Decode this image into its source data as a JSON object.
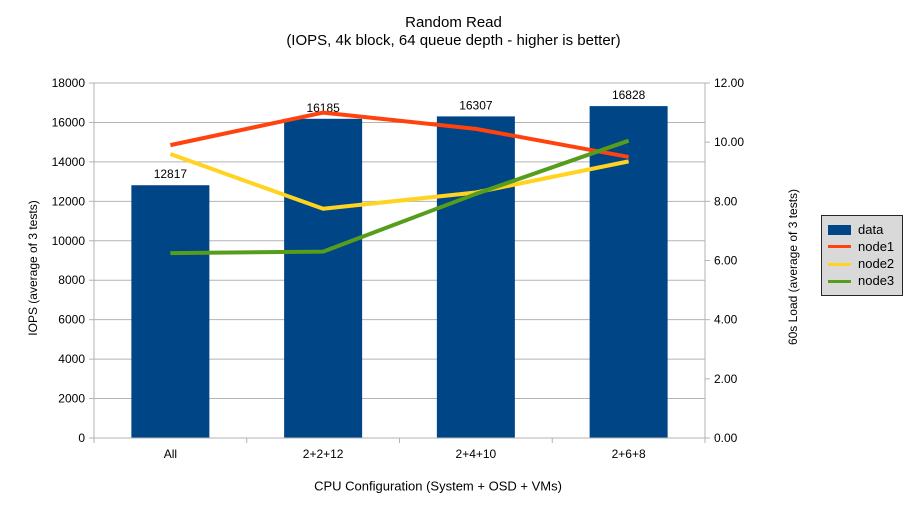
{
  "title": {
    "line1": "Random Read",
    "line2": "(IOPS, 4k block, 64 queue depth - higher is better)"
  },
  "axes": {
    "left": {
      "title": "IOPS (average of 3 tests)"
    },
    "right": {
      "title": "60s Load (average of 3 tests)"
    },
    "x": {
      "title": "CPU Configuration (System + OSD + VMs)"
    }
  },
  "legend": {
    "position": "right",
    "items": [
      {
        "label": "data",
        "color": "#004586",
        "type": "bar"
      },
      {
        "label": "node1",
        "color": "#FF420E",
        "type": "line"
      },
      {
        "label": "node2",
        "color": "#FFD320",
        "type": "line"
      },
      {
        "label": "node3",
        "color": "#579D1C",
        "type": "line"
      }
    ]
  },
  "colors": {
    "bar": "#004586",
    "node1": "#FF420E",
    "node2": "#FFD320",
    "node3": "#579D1C",
    "gridline": "#b3b3b3",
    "axis_line": "#b3b3b3",
    "text": "#000000",
    "legend_bg": "#d9d9d9",
    "background": "#ffffff"
  },
  "chart_data": {
    "type": "bar",
    "subtype": "combo bar + line, dual axis",
    "title": "Random Read",
    "subtitle": "(IOPS, 4k block, 64 queue depth - higher is better)",
    "xlabel": "CPU Configuration (System + OSD + VMs)",
    "categories": [
      "All",
      "2+2+12",
      "2+4+10",
      "2+6+8"
    ],
    "bar_series": {
      "name": "data",
      "axis": "left",
      "color": "#004586",
      "values": [
        12817,
        16185,
        16307,
        16828
      ],
      "value_labels": [
        "12817",
        "16185",
        "16307",
        "16828"
      ]
    },
    "line_series": [
      {
        "name": "node1",
        "axis": "right",
        "color": "#FF420E",
        "values": [
          9.9,
          11.0,
          10.45,
          9.5
        ]
      },
      {
        "name": "node2",
        "axis": "right",
        "color": "#FFD320",
        "values": [
          9.6,
          7.75,
          8.3,
          9.35
        ]
      },
      {
        "name": "node3",
        "axis": "right",
        "color": "#579D1C",
        "values": [
          6.25,
          6.3,
          8.25,
          10.05
        ]
      }
    ],
    "left_axis": {
      "label": "IOPS (average of 3 tests)",
      "min": 0,
      "max": 18000,
      "tick_step": 2000,
      "tick_labels": [
        "0",
        "2000",
        "4000",
        "6000",
        "8000",
        "10000",
        "12000",
        "14000",
        "16000",
        "18000"
      ]
    },
    "right_axis": {
      "label": "60s Load (average of 3 tests)",
      "min": 0,
      "max": 12,
      "tick_step": 2,
      "tick_labels": [
        "0.00",
        "2.00",
        "4.00",
        "6.00",
        "8.00",
        "10.00",
        "12.00"
      ]
    },
    "grid": "horizontal gridlines at every 2000 IOPS",
    "legend_position": "right"
  }
}
